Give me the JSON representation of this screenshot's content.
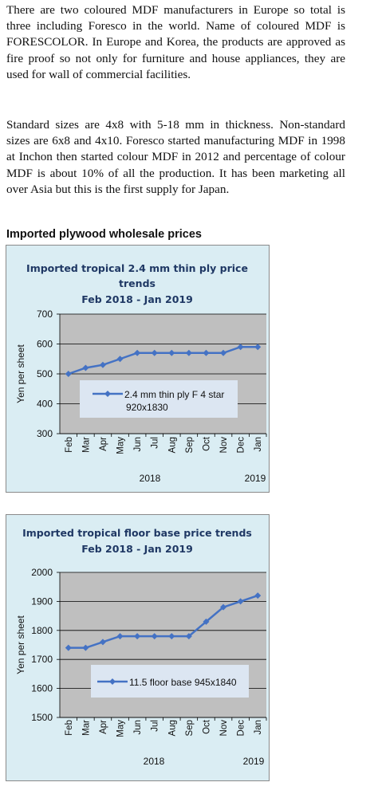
{
  "paragraphs": [
    "There are two coloured MDF manufacturers in Europe so total is three including Foresco in the world. Name of coloured MDF is FORESCOLOR. In Europe and Korea, the products are approved as fire proof so not only for furniture and house appliances, they are used for wall of commercial facilities.",
    "Standard sizes are 4x8 with 5-18 mm in thickness. Non-standard sizes are 6x8 and 4x10. Foresco started manufacturing MDF in 1998 at Inchon then started colour MDF in 2012 and percentage of colour MDF is about 10% of all the production. It has been marketing all over Asia but this is the first supply for Japan."
  ],
  "section_title": "Imported plywood wholesale prices",
  "chart_data": [
    {
      "type": "line",
      "title_lines": [
        "Imported tropical 2.4 mm thin ply price",
        "trends",
        "Feb 2018 -  Jan 2019"
      ],
      "ylabel": "Yen per sheet",
      "xlabels": [
        "2018",
        "2019"
      ],
      "ylim": [
        300,
        700
      ],
      "yticks": [
        "300",
        "400",
        "500",
        "600",
        "700"
      ],
      "categories": [
        "Feb",
        "Mar",
        "Apr",
        "May",
        "Jun",
        "Jul",
        "Aug",
        "Sep",
        "Oct",
        "Nov",
        "Dec",
        "Jan"
      ],
      "series": [
        {
          "name_lines": [
            "2.4 mm thin ply F 4 star",
            "920x1830"
          ],
          "values": [
            500,
            520,
            530,
            550,
            570,
            570,
            570,
            570,
            570,
            570,
            590,
            590
          ]
        }
      ],
      "grid": true,
      "legend_position": "inside-bottom-center",
      "colors": {
        "line": "#4472c4",
        "plot_bg": "#bfbfbf",
        "legend_bg": "#dce6f2",
        "chart_bg": "#daedf3"
      }
    },
    {
      "type": "line",
      "title_lines": [
        "Imported tropical floor base price trends",
        "Feb 2018 - Jan 2019"
      ],
      "ylabel": "Yen per sheet",
      "xlabels": [
        "2018",
        "2019"
      ],
      "ylim": [
        1500,
        2000
      ],
      "yticks": [
        "1500",
        "1600",
        "1700",
        "1800",
        "1900",
        "2000"
      ],
      "categories": [
        "Feb",
        "Mar",
        "Apr",
        "May",
        "Jun",
        "Jul",
        "Aug",
        "Sep",
        "Oct",
        "Nov",
        "Dec",
        "Jan"
      ],
      "series": [
        {
          "name_lines": [
            "11.5 floor base 945x1840"
          ],
          "values": [
            1740,
            1740,
            1760,
            1780,
            1780,
            1780,
            1780,
            1780,
            1830,
            1880,
            1900,
            1920
          ]
        }
      ],
      "grid": true,
      "legend_position": "inside-bottom-center",
      "colors": {
        "line": "#4472c4",
        "plot_bg": "#bfbfbf",
        "legend_bg": "#dce6f2",
        "chart_bg": "#daedf3"
      }
    }
  ]
}
